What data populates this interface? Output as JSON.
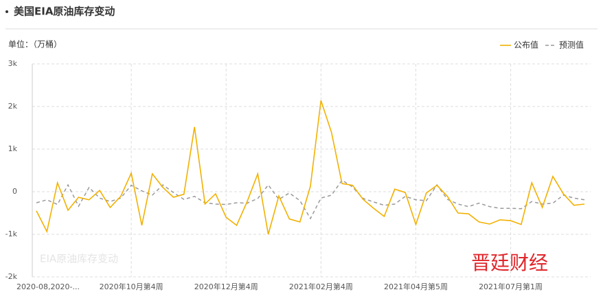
{
  "header": {
    "title": "美国EIA原油库存变动"
  },
  "chart_data": {
    "type": "line",
    "unit_label": "单位：（万桶）",
    "watermark": "EIA原油库存变动",
    "brand": "晋廷财经",
    "categories": [
      "2020-08,2020-...",
      null,
      null,
      null,
      null,
      null,
      null,
      null,
      null,
      "2020年10月第4周",
      null,
      null,
      null,
      null,
      null,
      null,
      null,
      null,
      "2020年12月第4周",
      null,
      null,
      null,
      null,
      null,
      null,
      null,
      null,
      "2021年02月第4周",
      null,
      null,
      null,
      null,
      null,
      null,
      null,
      null,
      "2021年04月第5周",
      null,
      null,
      null,
      null,
      null,
      null,
      null,
      null,
      "2021年07月第1周",
      null,
      null,
      null,
      null,
      null,
      null,
      null
    ],
    "series": [
      {
        "name": "公布值",
        "color": "#f2b000",
        "dashed": false,
        "values": [
          -450,
          -935,
          210,
          -435,
          -130,
          -190,
          30,
          -370,
          -110,
          435,
          -790,
          420,
          100,
          -130,
          -60,
          1520,
          -290,
          -50,
          -600,
          -790,
          -230,
          420,
          -1000,
          -100,
          -640,
          -710,
          130,
          2140,
          1390,
          190,
          150,
          -180,
          -390,
          -580,
          60,
          -20,
          -770,
          -30,
          150,
          -110,
          -500,
          -520,
          -710,
          -760,
          -660,
          -680,
          -770,
          210,
          -370,
          360,
          -50,
          -320,
          -290
        ]
      },
      {
        "name": "预测值",
        "color": "#999999",
        "dashed": true,
        "values": [
          -260,
          -190,
          -300,
          160,
          -340,
          100,
          -150,
          -230,
          -150,
          150,
          20,
          -80,
          160,
          -20,
          -180,
          -110,
          -260,
          -290,
          -300,
          -260,
          -270,
          -160,
          160,
          -180,
          -30,
          -210,
          -630,
          -150,
          -80,
          270,
          110,
          -160,
          -240,
          -320,
          -290,
          -110,
          -190,
          -210,
          160,
          -180,
          -290,
          -350,
          -270,
          -350,
          -390,
          -390,
          -400,
          -230,
          -290,
          -270,
          -80,
          -150,
          -190
        ]
      }
    ],
    "ylim": [
      -2000,
      3000
    ],
    "yticks": [
      {
        "value": 3000,
        "label": "3k"
      },
      {
        "value": 2000,
        "label": "2k"
      },
      {
        "value": 1000,
        "label": "1k"
      },
      0,
      {
        "value": -1000,
        "label": "-1k"
      },
      {
        "value": -2000,
        "label": "-2k"
      }
    ],
    "grid": true
  }
}
